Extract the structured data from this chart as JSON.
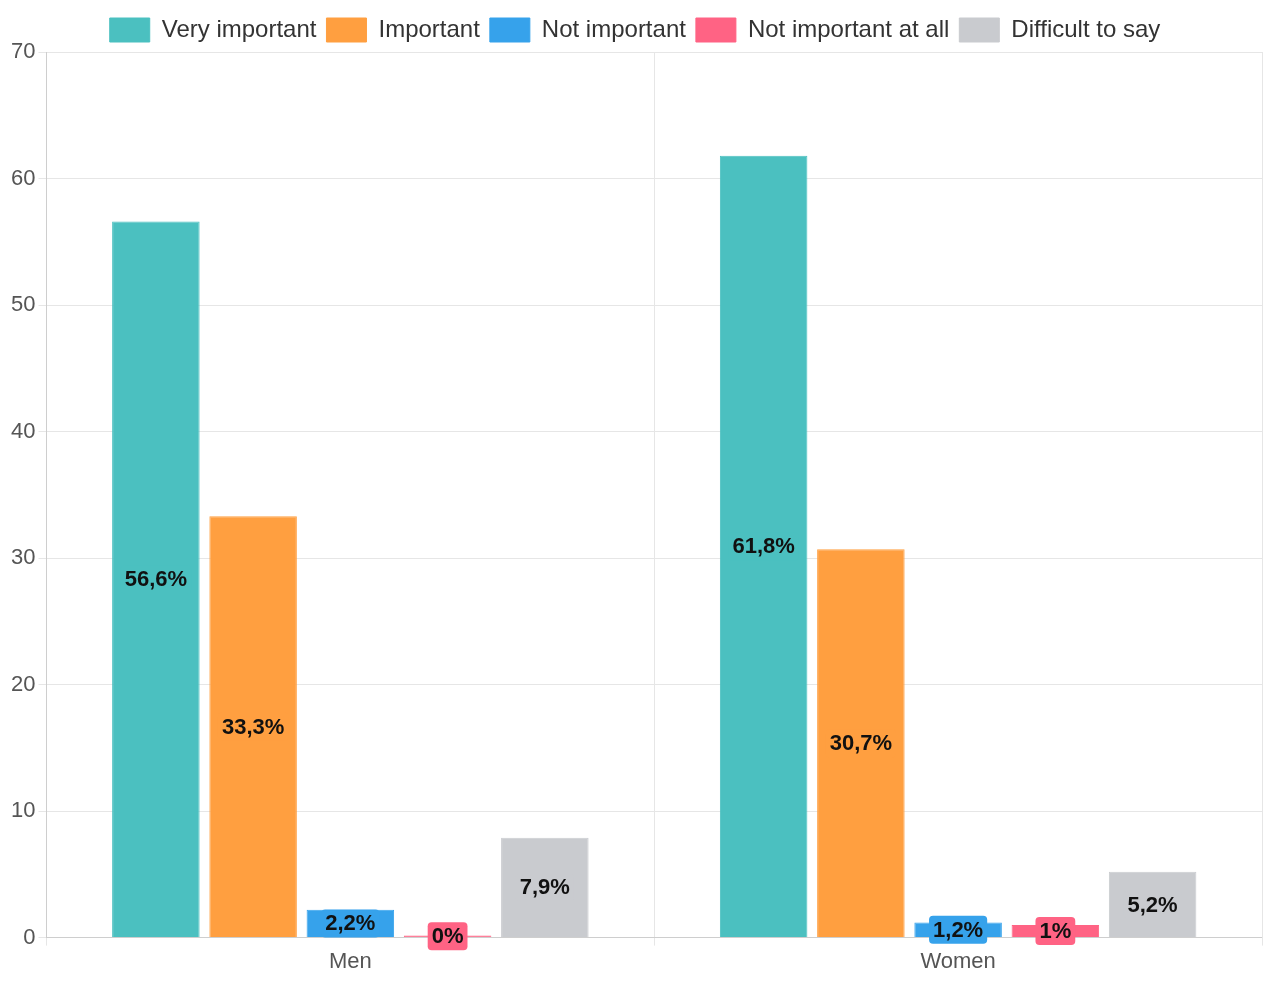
{
  "chart_data": {
    "type": "bar",
    "categories": [
      "Men",
      "Women"
    ],
    "series": [
      {
        "name": "Very important",
        "color": "#4bc0c0",
        "values": [
          56.6,
          61.8
        ],
        "value_labels": [
          "56,6%",
          "61,8%"
        ]
      },
      {
        "name": "Important",
        "color": "#ff9f40",
        "values": [
          33.3,
          30.7
        ],
        "value_labels": [
          "33,3%",
          "30,7%"
        ]
      },
      {
        "name": "Not important",
        "color": "#36a2eb",
        "values": [
          2.2,
          1.2
        ],
        "value_labels": [
          "2,2%",
          "1,2%"
        ]
      },
      {
        "name": "Not important at all",
        "color": "#ff6384",
        "values": [
          0,
          1
        ],
        "value_labels": [
          "0%",
          "1%"
        ]
      },
      {
        "name": "Difficult to say",
        "color": "#c9cbcf",
        "values": [
          7.9,
          5.2
        ],
        "value_labels": [
          "7,9%",
          "5,2%"
        ]
      }
    ],
    "ylim": [
      0,
      70
    ],
    "yticks": [
      0,
      10,
      20,
      30,
      40,
      50,
      60,
      70
    ],
    "grid": true,
    "legend": "top"
  }
}
